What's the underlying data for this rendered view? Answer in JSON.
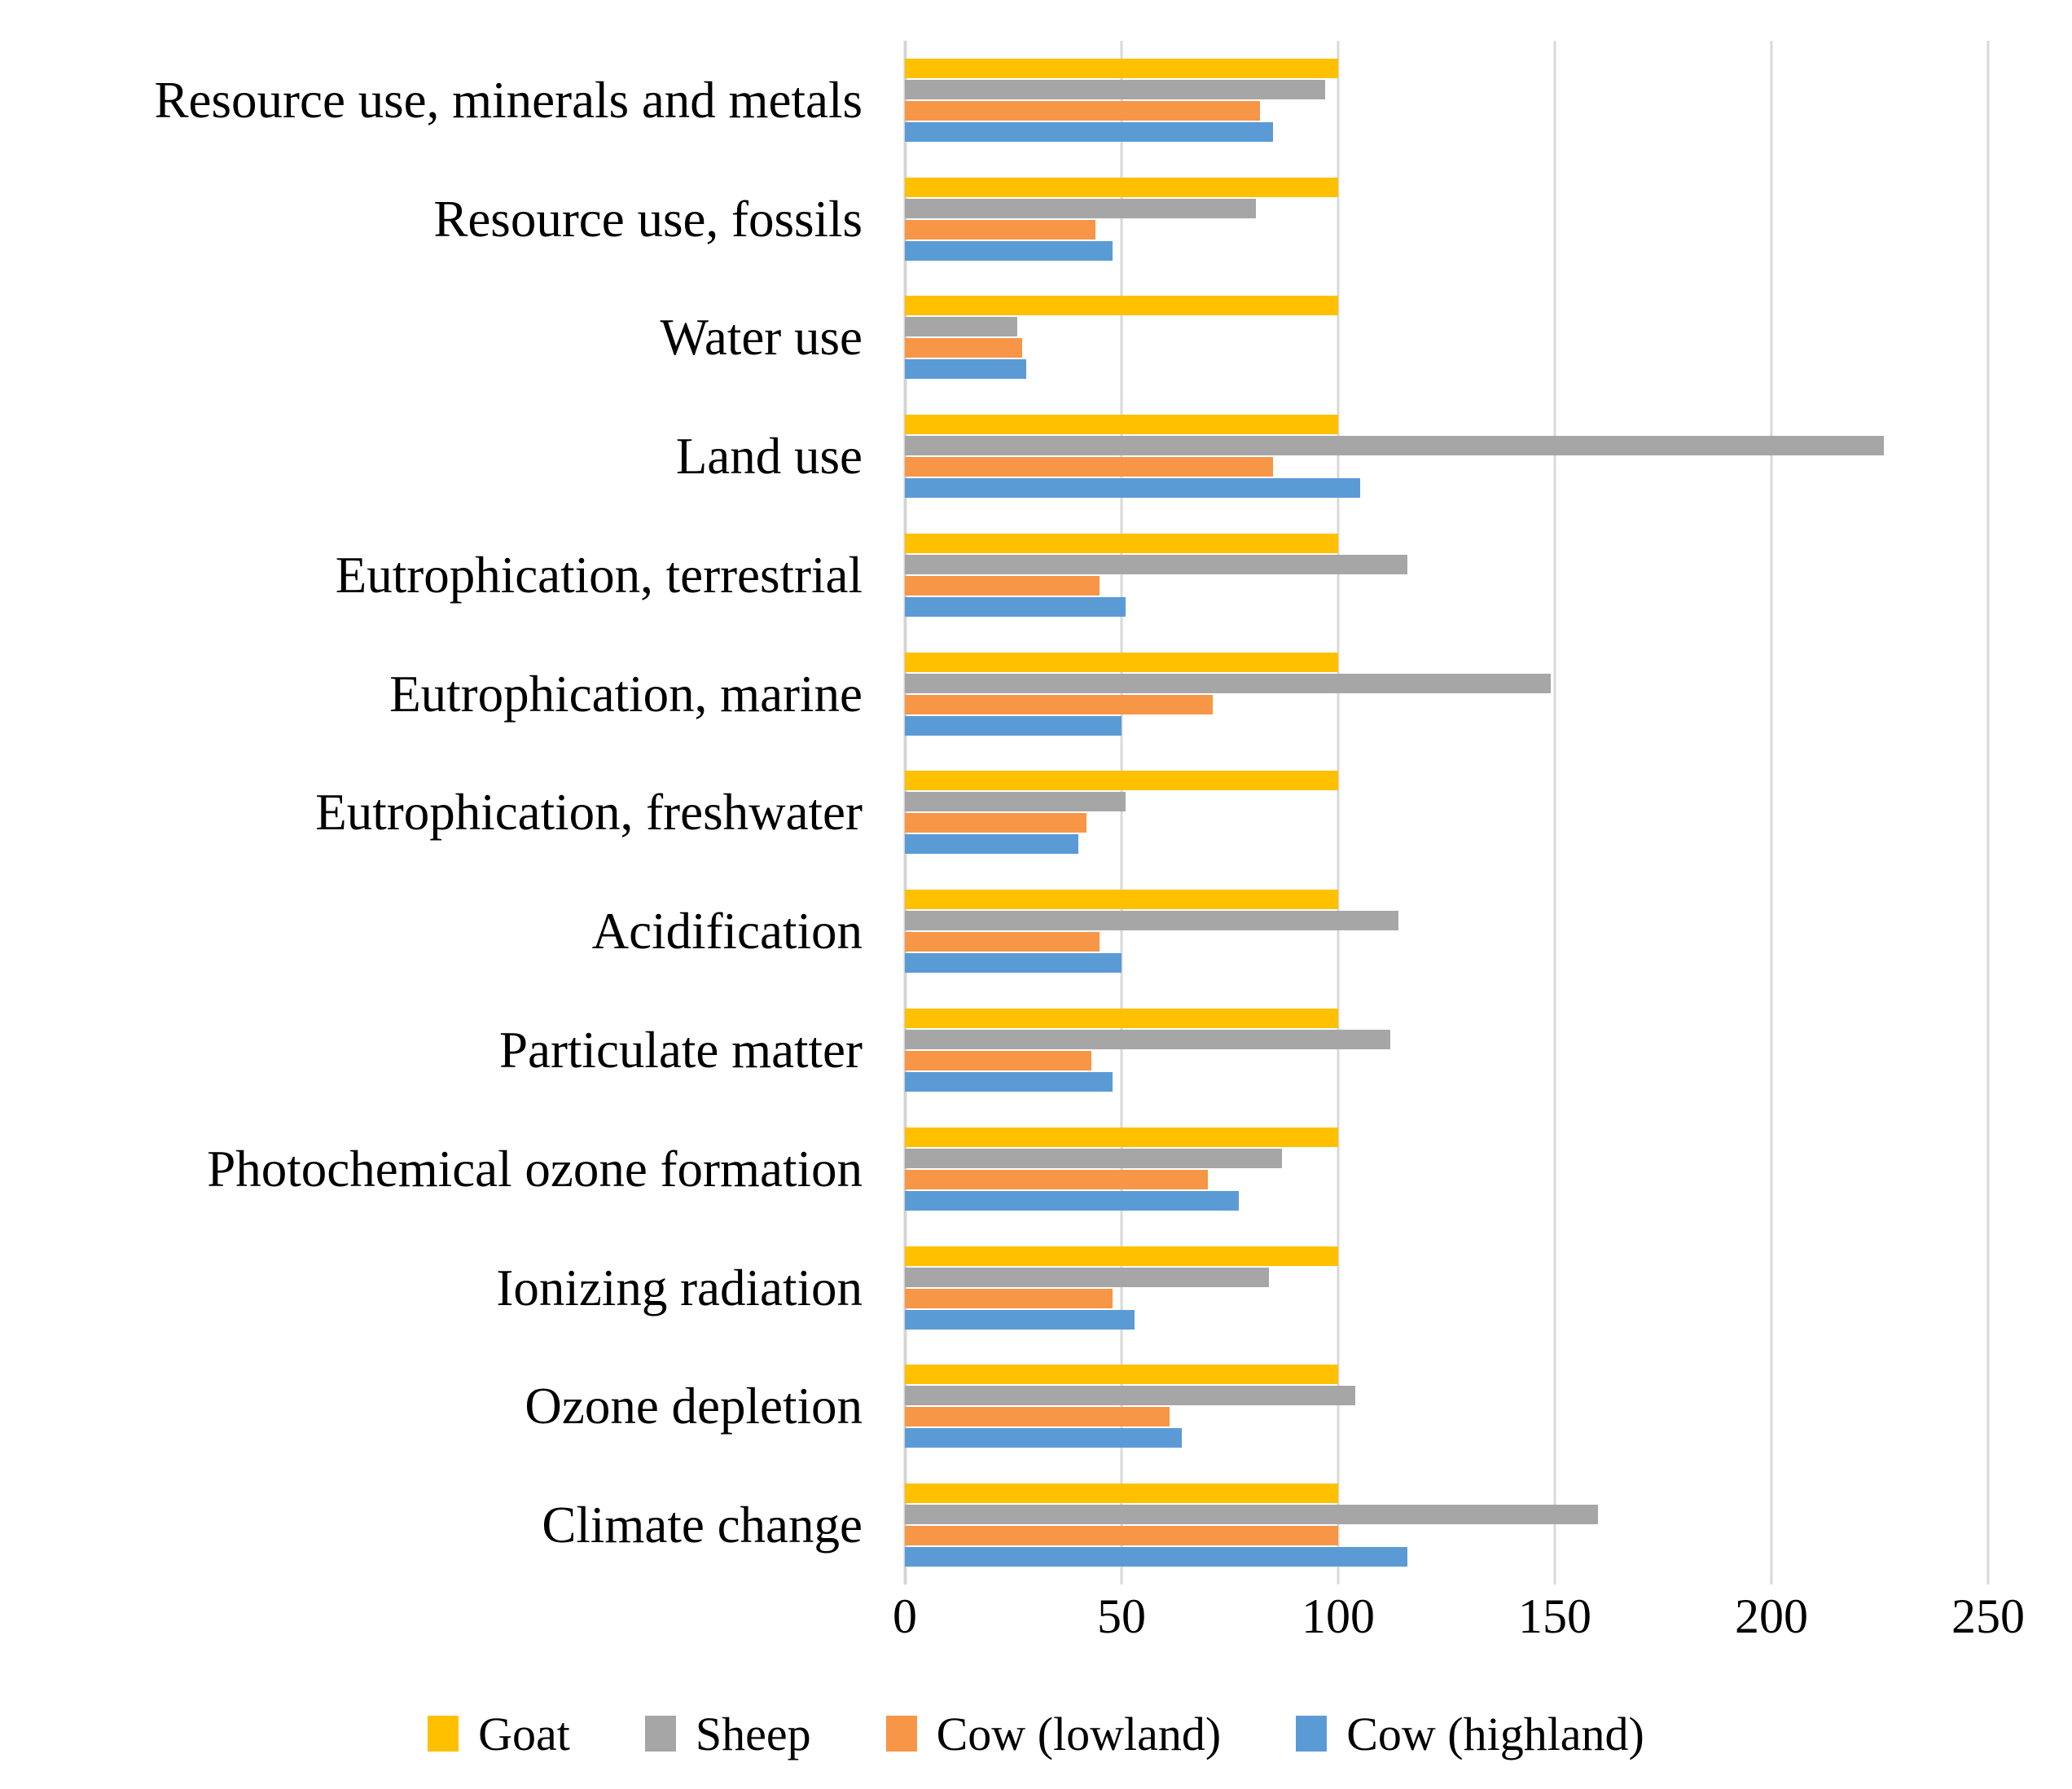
{
  "chart_data": {
    "type": "bar",
    "orientation": "horizontal",
    "title": "",
    "xlabel": "",
    "ylabel": "",
    "categories": [
      "Resource use, minerals and metals",
      "Resource use, fossils",
      "Water use",
      "Land use",
      "Eutrophication, terrestrial",
      "Eutrophication, marine",
      "Eutrophication, freshwater",
      "Acidification",
      "Particulate matter",
      "Photochemical ozone formation",
      "Ionizing radiation",
      "Ozone depletion",
      "Climate change"
    ],
    "series": [
      {
        "name": "Goat",
        "color": "#FFC000",
        "values": [
          100,
          100,
          100,
          100,
          100,
          100,
          100,
          100,
          100,
          100,
          100,
          100,
          100
        ]
      },
      {
        "name": "Sheep",
        "color": "#A6A6A6",
        "values": [
          97,
          81,
          26,
          226,
          116,
          149,
          51,
          114,
          112,
          87,
          84,
          104,
          160
        ]
      },
      {
        "name": "Cow (lowland)",
        "color": "#F79646",
        "values": [
          82,
          44,
          27,
          85,
          45,
          71,
          42,
          45,
          43,
          70,
          48,
          61,
          100
        ]
      },
      {
        "name": "Cow (highland)",
        "color": "#5B9BD5",
        "values": [
          85,
          48,
          28,
          105,
          51,
          50,
          40,
          50,
          48,
          77,
          53,
          64,
          116
        ]
      }
    ],
    "x_ticks": [
      0,
      50,
      100,
      150,
      200,
      250
    ],
    "xlim": [
      0,
      269
    ],
    "grid": "vertical-gridlines-on",
    "legend_position": "bottom",
    "gridline_color": "#D9D9D9",
    "text_color": "#000000",
    "background_color": "#FFFFFF"
  }
}
